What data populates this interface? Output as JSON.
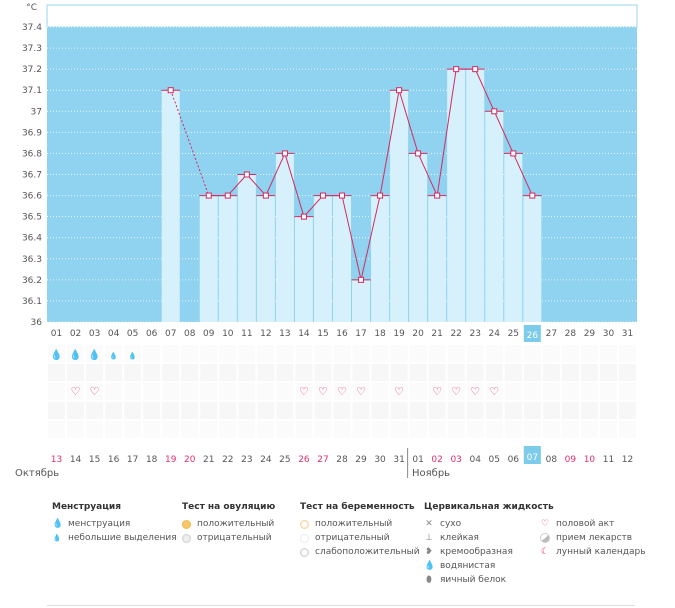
{
  "chart_data": {
    "type": "line",
    "title": "",
    "ylabel": "°C",
    "ylim": [
      36,
      37.4
    ],
    "yticks": [
      "36",
      "36.1",
      "36.2",
      "36.3",
      "36.4",
      "36.5",
      "36.6",
      "36.7",
      "36.8",
      "36.9",
      "37",
      "37.1",
      "37.2",
      "37.3",
      "37.4"
    ],
    "top_days": [
      "01",
      "02",
      "03",
      "04",
      "05",
      "06",
      "07",
      "08",
      "09",
      "10",
      "11",
      "12",
      "13",
      "14",
      "15",
      "16",
      "17",
      "18",
      "19",
      "20",
      "21",
      "22",
      "23",
      "24",
      "25",
      "26",
      "27",
      "28",
      "29",
      "30",
      "31"
    ],
    "today_index": 25,
    "series": [
      {
        "name": "temperature",
        "points": [
          {
            "i": 6,
            "v": 37.1
          },
          {
            "i": 8,
            "v": 36.6
          },
          {
            "i": 9,
            "v": 36.6
          },
          {
            "i": 10,
            "v": 36.7
          },
          {
            "i": 11,
            "v": 36.6
          },
          {
            "i": 12,
            "v": 36.8
          },
          {
            "i": 13,
            "v": 36.5
          },
          {
            "i": 14,
            "v": 36.6
          },
          {
            "i": 15,
            "v": 36.6
          },
          {
            "i": 16,
            "v": 36.2
          },
          {
            "i": 17,
            "v": 36.6
          },
          {
            "i": 18,
            "v": 37.1
          },
          {
            "i": 19,
            "v": 36.8
          },
          {
            "i": 20,
            "v": 36.6
          },
          {
            "i": 21,
            "v": 37.2
          },
          {
            "i": 22,
            "v": 37.2
          },
          {
            "i": 23,
            "v": 37.0
          },
          {
            "i": 24,
            "v": 36.8
          },
          {
            "i": 25,
            "v": 36.6
          }
        ]
      }
    ],
    "dashed_segment": [
      6,
      8
    ],
    "menstruation_heavy": [
      0,
      1,
      2
    ],
    "menstruation_light": [
      3,
      4
    ],
    "intercourse": [
      1,
      2,
      13,
      14,
      15,
      16,
      18,
      20,
      21,
      22,
      23
    ],
    "bottom_days": [
      "13",
      "14",
      "15",
      "16",
      "17",
      "18",
      "19",
      "20",
      "21",
      "22",
      "23",
      "24",
      "25",
      "26",
      "27",
      "28",
      "29",
      "30",
      "31",
      "01",
      "02",
      "03",
      "04",
      "05",
      "06",
      "07",
      "08",
      "09",
      "10",
      "11",
      "12"
    ],
    "bottom_pink": [
      0,
      6,
      7,
      13,
      14,
      20,
      21,
      27,
      28
    ],
    "bottom_today_index": 25,
    "month_separator_index": 19
  },
  "months": {
    "left": "Октябрь",
    "right": "Ноябрь"
  },
  "legend": {
    "menstruation": {
      "title": "Менструация",
      "items": [
        "менструация",
        "небольшие выделения"
      ]
    },
    "ovulation": {
      "title": "Тест на овуляцию",
      "items": [
        "положительный",
        "отрицательный"
      ]
    },
    "pregnancy": {
      "title": "Тест на беременность",
      "items": [
        "положительный",
        "отрицательный",
        "слабоположительный"
      ]
    },
    "cervical": {
      "title": "Цервикальная жидкость",
      "items": [
        "сухо",
        "клейкая",
        "кремообразная",
        "водянистая",
        "яичный белок"
      ]
    },
    "other": {
      "items": [
        "половой акт",
        "прием лекарств",
        "лунный календарь"
      ]
    }
  }
}
